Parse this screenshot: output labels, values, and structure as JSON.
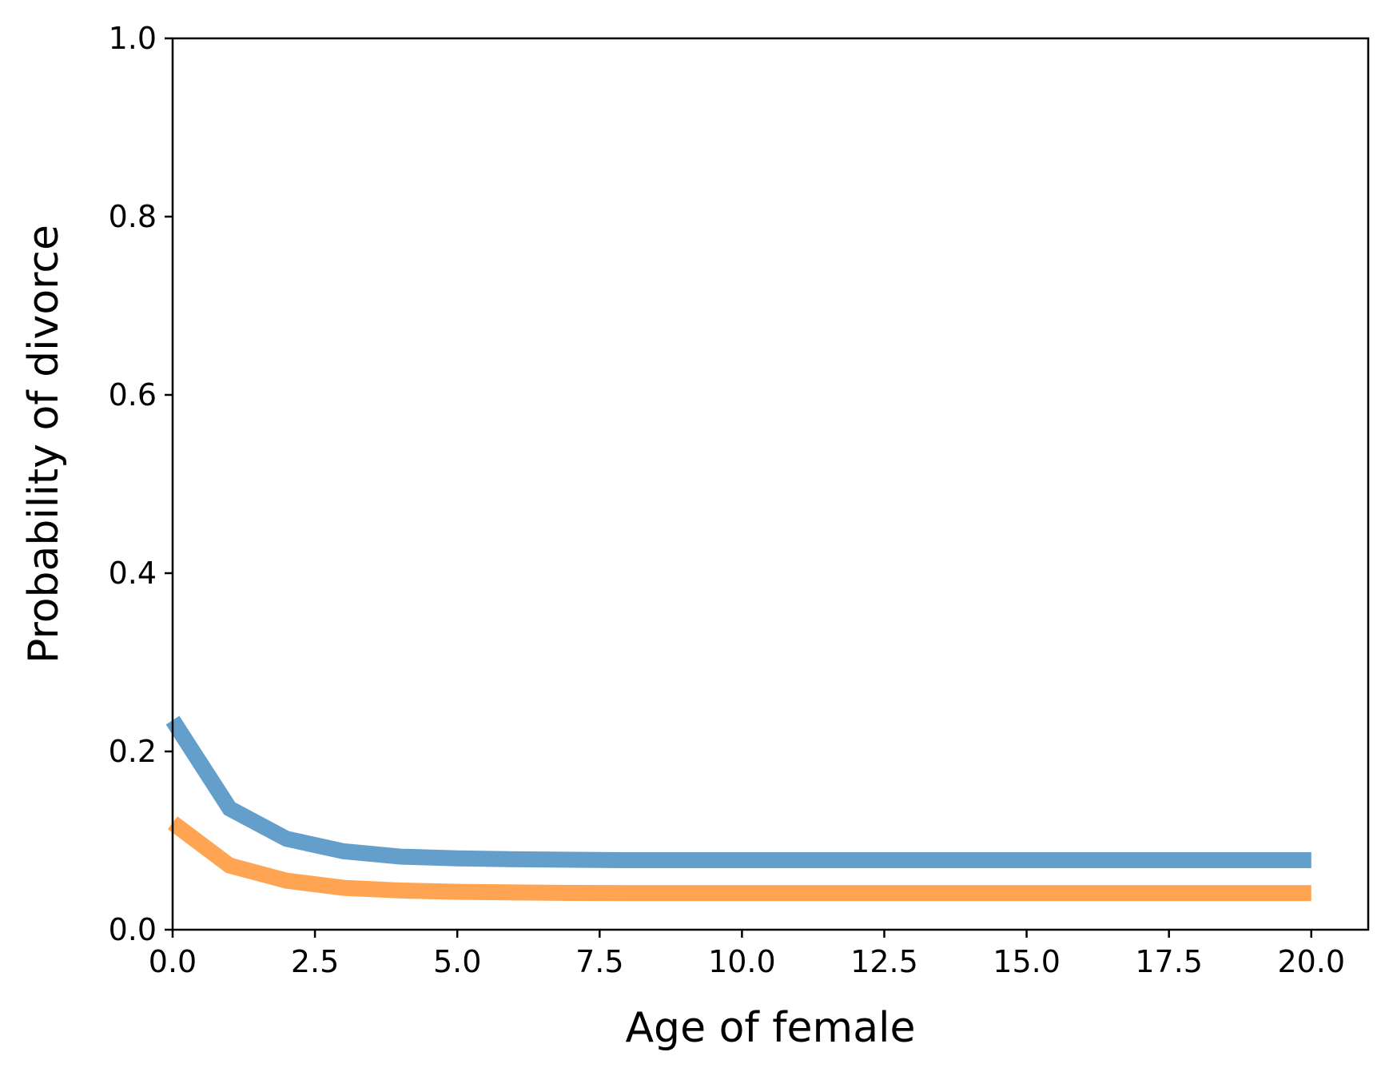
{
  "chart_data": {
    "type": "line",
    "title": "",
    "xlabel": "Age of female",
    "ylabel": "Probability of divorce",
    "xlim": [
      0,
      21
    ],
    "ylim": [
      0,
      1.0
    ],
    "xticks": [
      "0.0",
      "2.5",
      "5.0",
      "7.5",
      "10.0",
      "12.5",
      "15.0",
      "17.5",
      "20.0"
    ],
    "yticks": [
      "0.0",
      "0.2",
      "0.4",
      "0.6",
      "0.8",
      "1.0"
    ],
    "grid": false,
    "legend": "none",
    "x": [
      0,
      1,
      2,
      3,
      4,
      5,
      6,
      7,
      8,
      9,
      10,
      11,
      12,
      13,
      14,
      15,
      16,
      17,
      18,
      19,
      20
    ],
    "series": [
      {
        "color": "#649fcb",
        "values": [
          0.235,
          0.136,
          0.102,
          0.088,
          0.082,
          0.08,
          0.079,
          0.0785,
          0.078,
          0.078,
          0.078,
          0.078,
          0.078,
          0.078,
          0.078,
          0.078,
          0.078,
          0.078,
          0.078,
          0.078,
          0.078
        ]
      },
      {
        "color": "#ffa453",
        "values": [
          0.12,
          0.072,
          0.055,
          0.047,
          0.044,
          0.0425,
          0.0418,
          0.0413,
          0.041,
          0.041,
          0.041,
          0.041,
          0.041,
          0.041,
          0.041,
          0.041,
          0.041,
          0.041,
          0.041,
          0.041,
          0.041
        ]
      }
    ]
  }
}
